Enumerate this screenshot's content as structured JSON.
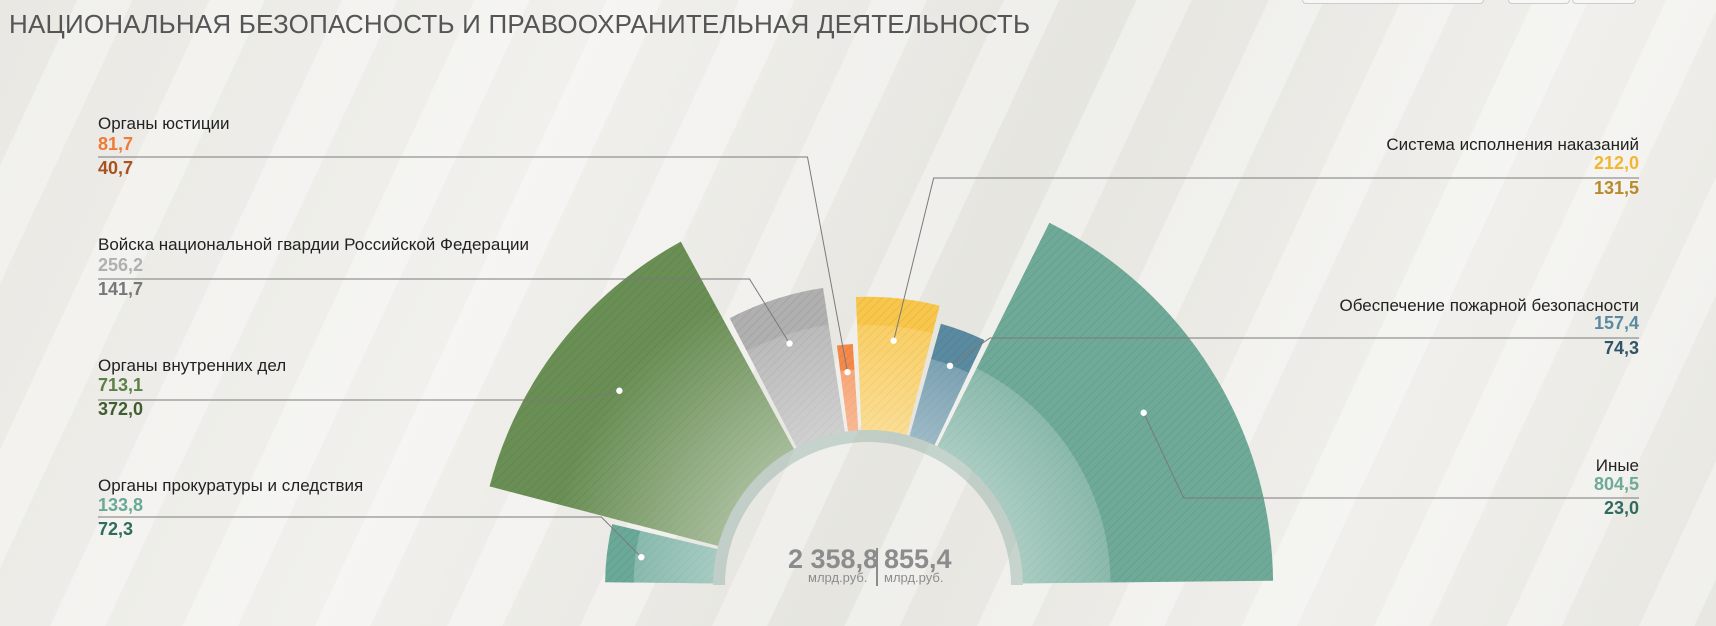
{
  "page": {
    "title": "НАЦИОНАЛЬНАЯ БЕЗОПАСНОСТЬ И ПРАВООХРАНИТЕЛЬНАЯ ДЕЯТЕЛЬНОСТЬ"
  },
  "chart_data": {
    "type": "semi-donut",
    "title": "НАЦИОНАЛЬНАЯ БЕЗОПАСНОСТЬ И ПРАВООХРАНИТЕЛЬНАЯ ДЕЯТЕЛЬНОСТЬ",
    "totals": {
      "planned": "2 358,8",
      "actual": "855,4",
      "unit": "млрд.руб."
    },
    "series": [
      {
        "name": "Органы прокуратуры и следствия",
        "planned": 133.8,
        "actual": 72.3,
        "planned_label": "133,8",
        "actual_label": "72,3",
        "color": "#6aa898",
        "v1_color": "#6aa898",
        "v2_color": "#2f6b5e",
        "side": "left"
      },
      {
        "name": "Органы внутренних дел",
        "planned": 713.1,
        "actual": 372.0,
        "planned_label": "713,1",
        "actual_label": "372,0",
        "color": "#6a8f55",
        "v1_color": "#5d7f48",
        "v2_color": "#3f5d2e",
        "side": "left"
      },
      {
        "name": "Войска национальной гвардии Российской Федерации",
        "planned": 256.2,
        "actual": 141.7,
        "planned_label": "256,2",
        "actual_label": "141,7",
        "color": "#b0b0b0",
        "v1_color": "#b0b0b0",
        "v2_color": "#777777",
        "side": "left"
      },
      {
        "name": "Органы юстиции",
        "planned": 81.7,
        "actual": 40.7,
        "planned_label": "81,7",
        "actual_label": "40,7",
        "color": "#f5894a",
        "v1_color": "#f07a36",
        "v2_color": "#a8531f",
        "side": "left"
      },
      {
        "name": "Система исполнения наказаний",
        "planned": 212.0,
        "actual": 131.5,
        "planned_label": "212,0",
        "actual_label": "131,5",
        "color": "#f8c64a",
        "v1_color": "#f2b630",
        "v2_color": "#b88a2a",
        "side": "right"
      },
      {
        "name": "Обеспечение пожарной безопасности",
        "planned": 157.4,
        "actual": 74.3,
        "planned_label": "157,4",
        "actual_label": "74,3",
        "color": "#5a8aa0",
        "v1_color": "#5a8aa0",
        "v2_color": "#2f5568",
        "side": "right"
      },
      {
        "name": "Иные",
        "planned": 804.5,
        "actual": 23.0,
        "planned_label": "804,5",
        "actual_label": "23,0",
        "color": "#6faa98",
        "v1_color": "#6faa98",
        "v2_color": "#2f6b5e",
        "side": "right"
      }
    ]
  }
}
